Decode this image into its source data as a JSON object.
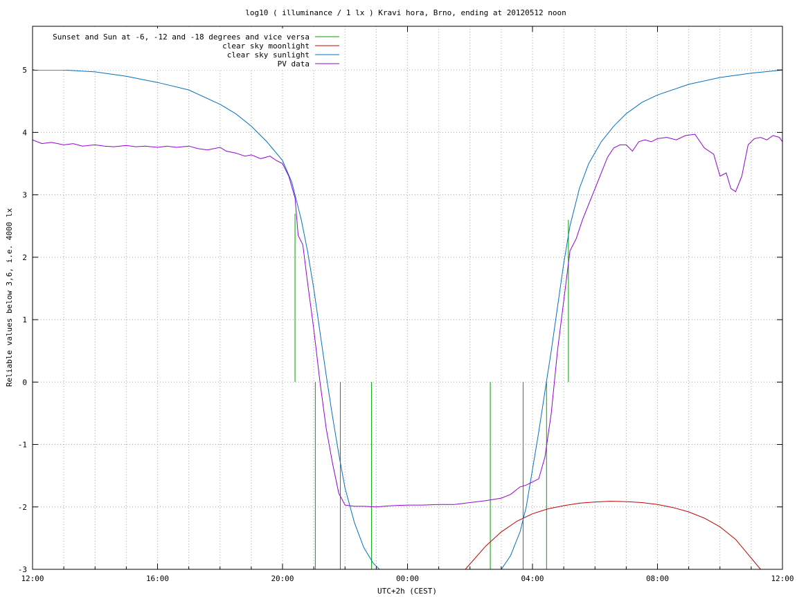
{
  "chart_data": {
    "type": "line",
    "title": "log10 ( illuminance / 1 lx ) Kravi hora, Brno, ending at 20120512 noon",
    "xlabel": "UTC+2h (CEST)",
    "ylabel": "Reliable values below 3,6, i.e. 4000 lx",
    "xlim": [
      0,
      24
    ],
    "ylim": [
      -3,
      5.7
    ],
    "grid": true,
    "legend_position": "top-left",
    "x_ticks": [
      {
        "x": 0,
        "label": "12:00"
      },
      {
        "x": 4,
        "label": "16:00"
      },
      {
        "x": 8,
        "label": "20:00"
      },
      {
        "x": 12,
        "label": "00:00"
      },
      {
        "x": 16,
        "label": "04:00"
      },
      {
        "x": 20,
        "label": "08:00"
      },
      {
        "x": 24,
        "label": "12:00"
      }
    ],
    "y_ticks": [
      {
        "y": -3,
        "label": "-3"
      },
      {
        "y": -2,
        "label": "-2"
      },
      {
        "y": -1,
        "label": "-1"
      },
      {
        "y": 0,
        "label": "0"
      },
      {
        "y": 1,
        "label": "1"
      },
      {
        "y": 2,
        "label": "2"
      },
      {
        "y": 3,
        "label": "3"
      },
      {
        "y": 4,
        "label": "4"
      },
      {
        "y": 5,
        "label": "5"
      }
    ],
    "series": [
      {
        "name": "Sunset and Sun at -6, -12 and -18 degrees and vice versa",
        "color": "#00a000",
        "style": "vlines",
        "lines": [
          {
            "x": 8.4,
            "y0": 0,
            "y1": 2.7
          },
          {
            "x": 9.05,
            "y0": -3,
            "y1": 0
          },
          {
            "x": 9.85,
            "y0": -3,
            "y1": 0
          },
          {
            "x": 10.85,
            "y0": -3,
            "y1": 0
          },
          {
            "x": 14.65,
            "y0": -3,
            "y1": 0
          },
          {
            "x": 15.7,
            "y0": -3,
            "y1": 0
          },
          {
            "x": 16.45,
            "y0": -3,
            "y1": 0
          },
          {
            "x": 17.15,
            "y0": 0,
            "y1": 2.6
          }
        ]
      },
      {
        "name": "clear sky moonlight",
        "color": "#c00000",
        "x": [
          13.85,
          14.5,
          15.0,
          15.5,
          16.0,
          16.5,
          17.0,
          17.5,
          18.0,
          18.5,
          19.0,
          19.5,
          20.0,
          20.5,
          21.0,
          21.5,
          22.0,
          22.5,
          23.0,
          23.3
        ],
        "y": [
          -3.0,
          -2.63,
          -2.4,
          -2.23,
          -2.11,
          -2.03,
          -1.98,
          -1.94,
          -1.92,
          -1.91,
          -1.915,
          -1.93,
          -1.96,
          -2.01,
          -2.08,
          -2.18,
          -2.32,
          -2.52,
          -2.82,
          -3.0
        ]
      },
      {
        "name": "clear sky sunlight",
        "color": "#0070c0",
        "x": [
          0,
          1,
          2,
          3,
          4,
          5,
          6,
          6.5,
          7.0,
          7.5,
          8.0,
          8.3,
          8.6,
          8.8,
          9.0,
          9.2,
          9.4,
          9.6,
          9.8,
          10.0,
          10.3,
          10.6,
          10.9,
          11.1,
          15.0,
          15.3,
          15.6,
          15.8,
          16.0,
          16.2,
          16.4,
          16.6,
          16.8,
          17.0,
          17.2,
          17.5,
          17.8,
          18.2,
          18.6,
          19.0,
          19.5,
          20.0,
          21.0,
          22.0,
          23.0,
          24.0
        ],
        "y": [
          5.0,
          5.0,
          4.97,
          4.9,
          4.8,
          4.68,
          4.45,
          4.3,
          4.1,
          3.85,
          3.55,
          3.2,
          2.6,
          2.1,
          1.5,
          0.8,
          0.1,
          -0.55,
          -1.15,
          -1.7,
          -2.25,
          -2.65,
          -2.9,
          -3.0,
          -3.0,
          -2.78,
          -2.4,
          -2.0,
          -1.4,
          -0.8,
          -0.15,
          0.5,
          1.2,
          1.9,
          2.5,
          3.1,
          3.5,
          3.85,
          4.1,
          4.3,
          4.48,
          4.6,
          4.77,
          4.88,
          4.95,
          5.0
        ]
      },
      {
        "name": "PV data",
        "color": "#9400d3",
        "x": [
          0,
          0.3,
          0.6,
          1.0,
          1.3,
          1.6,
          2.0,
          2.3,
          2.6,
          3.0,
          3.3,
          3.6,
          4.0,
          4.3,
          4.6,
          5.0,
          5.3,
          5.6,
          6.0,
          6.2,
          6.5,
          6.8,
          7.0,
          7.3,
          7.6,
          7.8,
          8.0,
          8.2,
          8.4,
          8.5,
          8.65,
          8.8,
          9.0,
          9.2,
          9.4,
          9.6,
          9.8,
          10.0,
          10.3,
          10.6,
          11.0,
          11.5,
          12.0,
          12.5,
          13.0,
          13.5,
          14.0,
          14.5,
          15.0,
          15.3,
          15.6,
          15.8,
          16.0,
          16.2,
          16.4,
          16.6,
          16.8,
          17.0,
          17.2,
          17.4,
          17.6,
          17.8,
          18.0,
          18.2,
          18.4,
          18.6,
          18.8,
          19.0,
          19.2,
          19.4,
          19.6,
          19.8,
          20.0,
          20.3,
          20.6,
          20.9,
          21.2,
          21.5,
          21.8,
          22.0,
          22.2,
          22.35,
          22.5,
          22.7,
          22.9,
          23.1,
          23.3,
          23.5,
          23.7,
          23.9,
          24.0
        ],
        "y": [
          3.88,
          3.82,
          3.84,
          3.8,
          3.82,
          3.78,
          3.8,
          3.78,
          3.77,
          3.79,
          3.77,
          3.78,
          3.76,
          3.78,
          3.76,
          3.78,
          3.74,
          3.72,
          3.76,
          3.7,
          3.67,
          3.62,
          3.64,
          3.58,
          3.62,
          3.55,
          3.5,
          3.3,
          2.95,
          2.35,
          2.2,
          1.6,
          0.85,
          0.0,
          -0.75,
          -1.3,
          -1.78,
          -1.97,
          -1.99,
          -1.99,
          -2.0,
          -1.98,
          -1.97,
          -1.97,
          -1.96,
          -1.96,
          -1.93,
          -1.9,
          -1.86,
          -1.8,
          -1.68,
          -1.65,
          -1.6,
          -1.55,
          -1.2,
          -0.5,
          0.5,
          1.3,
          2.1,
          2.3,
          2.6,
          2.85,
          3.1,
          3.35,
          3.6,
          3.75,
          3.8,
          3.8,
          3.7,
          3.85,
          3.88,
          3.85,
          3.9,
          3.92,
          3.88,
          3.95,
          3.97,
          3.75,
          3.65,
          3.3,
          3.35,
          3.1,
          3.05,
          3.3,
          3.8,
          3.9,
          3.92,
          3.88,
          3.95,
          3.92,
          3.85
        ]
      }
    ]
  }
}
